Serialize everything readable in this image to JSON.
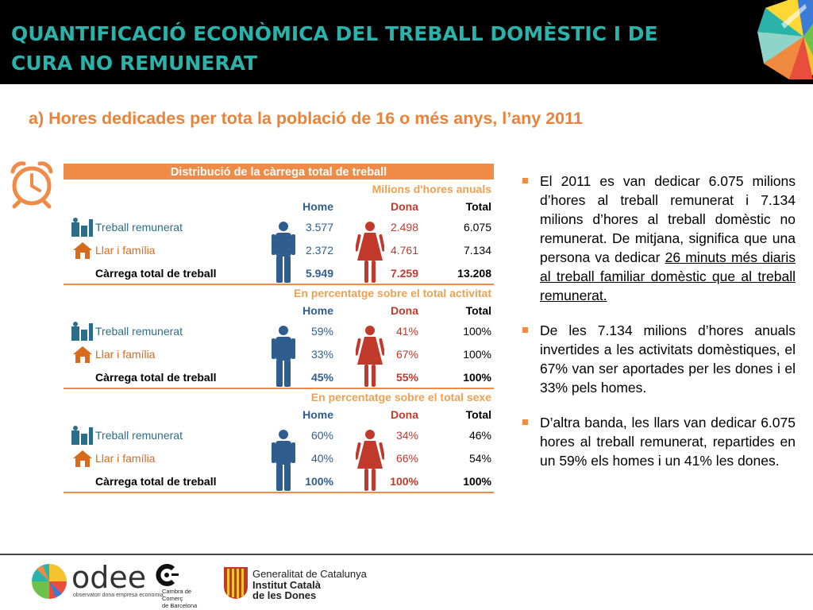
{
  "header": {
    "title": "QUANTIFICACIÓ ECONÒMICA DEL TREBALL DOMÈSTIC I DE CURA NO REMUNERAT"
  },
  "subtitle": "a) Hores dedicades per tota la població de 16 o més anys, l’any 2011",
  "table": {
    "title": "Distribució de la càrrega total de treball",
    "col_home": "Home",
    "col_dona": "Dona",
    "col_total": "Total",
    "sections": [
      {
        "subtitle": "Milions d'hores anuals",
        "rows": [
          {
            "label": "Treball remunerat",
            "home": "3.577",
            "dona": "2.498",
            "total": "6.075"
          },
          {
            "label": "Llar i família",
            "home": "2.372",
            "dona": "4.761",
            "total": "7.134"
          },
          {
            "label": "Càrrega total de treball",
            "home": "5.949",
            "dona": "7.259",
            "total": "13.208"
          }
        ]
      },
      {
        "subtitle": "En percentatge sobre el total activitat",
        "rows": [
          {
            "label": "Treball remunerat",
            "home": "59%",
            "dona": "41%",
            "total": "100%"
          },
          {
            "label": "Llar i família",
            "home": "33%",
            "dona": "67%",
            "total": "100%"
          },
          {
            "label": "Càrrega total de treball",
            "home": "45%",
            "dona": "55%",
            "total": "100%"
          }
        ]
      },
      {
        "subtitle": "En percentatge sobre el total sexe",
        "rows": [
          {
            "label": "Treball remunerat",
            "home": "60%",
            "dona": "34%",
            "total": "46%"
          },
          {
            "label": "Llar i família",
            "home": "40%",
            "dona": "66%",
            "total": "54%"
          },
          {
            "label": "Càrrega total de treball",
            "home": "100%",
            "dona": "100%",
            "total": "100%"
          }
        ]
      }
    ]
  },
  "bullets": {
    "b1_pre": "El 2011 es van dedicar 6.075 milions d’hores al treball remunerat i 7.134 milions d’hores al treball domèstic no remunerat. De mitjana, significa que una persona va dedicar ",
    "b1_ul": "26 minuts més diaris al treball familiar domèstic que al treball remunerat.",
    "b2": "De les 7.134 milions d’hores anuals invertides a les activitats domèstiques, el 67% van ser aportades per les dones i el 33% pels homes.",
    "b3": "D’altra banda, les llars van dedicar 6.075 hores al treball remunerat, repartides en un 59% els homes i un 41% les dones."
  },
  "footer": {
    "odee_name": "odee",
    "odee_sub": "observatori dona empresa economia",
    "cambra_line1": "Cambra de Comerç",
    "cambra_line2": "de Barcelona",
    "gen_line1": "Generalitat de Catalunya",
    "gen_line2": "Institut Català",
    "gen_line3": "de les Dones"
  },
  "colors": {
    "header_bg": "#000000",
    "header_title": "#2ab3ab",
    "accent_orange": "#ef8a47",
    "home_blue": "#2f5e8e",
    "dona_red": "#c0392b"
  },
  "icons": [
    "clock-icon",
    "work-icon",
    "house-icon",
    "man-icon",
    "woman-icon",
    "odee-logo",
    "cambra-logo",
    "generalitat-logo"
  ]
}
